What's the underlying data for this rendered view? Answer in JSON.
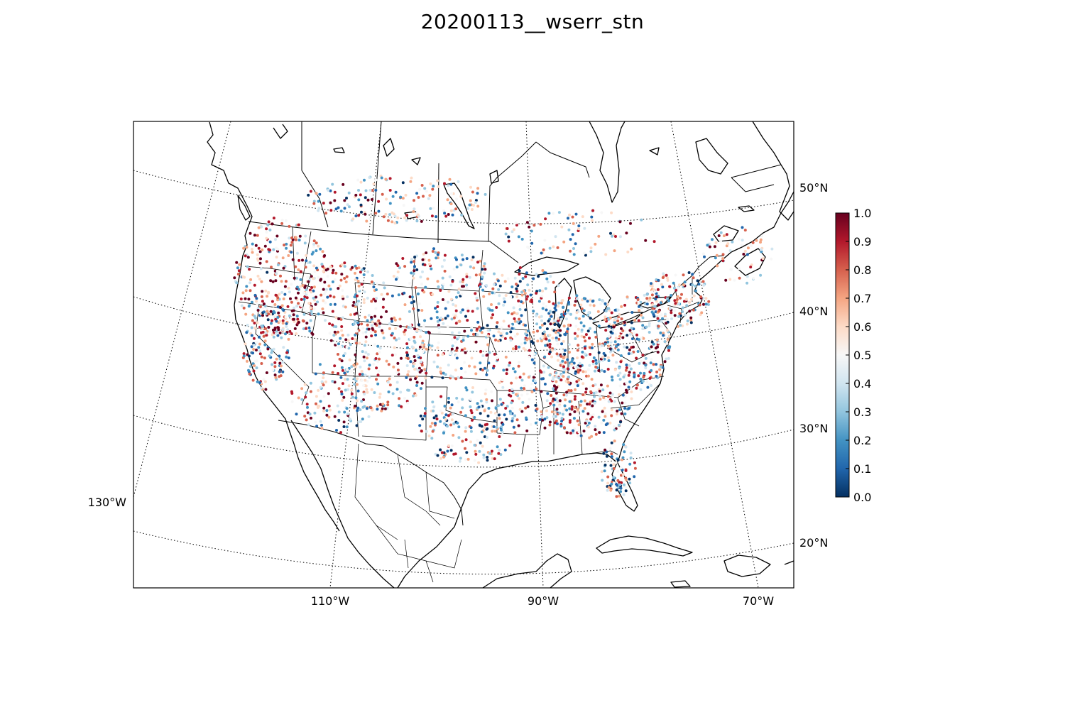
{
  "title": "20200113__wserr_stn",
  "map": {
    "projection": "lambert-conformal",
    "region": "CONUS",
    "graticule_style": "dotted",
    "coastline_color": "#000000",
    "latitude_labels": [
      "50°N",
      "40°N",
      "30°N",
      "20°N"
    ],
    "longitude_labels": [
      "110°W",
      "90°W",
      "70°W"
    ],
    "left_longitude_label": "130°W"
  },
  "colorbar": {
    "colormap": "RdBu_r",
    "min": 0.0,
    "max": 1.0,
    "ticks": [
      "0.0",
      "0.1",
      "0.2",
      "0.3",
      "0.4",
      "0.5",
      "0.6",
      "0.7",
      "0.8",
      "0.9",
      "1.0"
    ],
    "colors": [
      "#053061",
      "#2166ac",
      "#4393c3",
      "#92c5de",
      "#d1e5f0",
      "#f7f7f7",
      "#fddbc7",
      "#f4a582",
      "#d6604d",
      "#b2182b",
      "#67001f"
    ]
  }
}
